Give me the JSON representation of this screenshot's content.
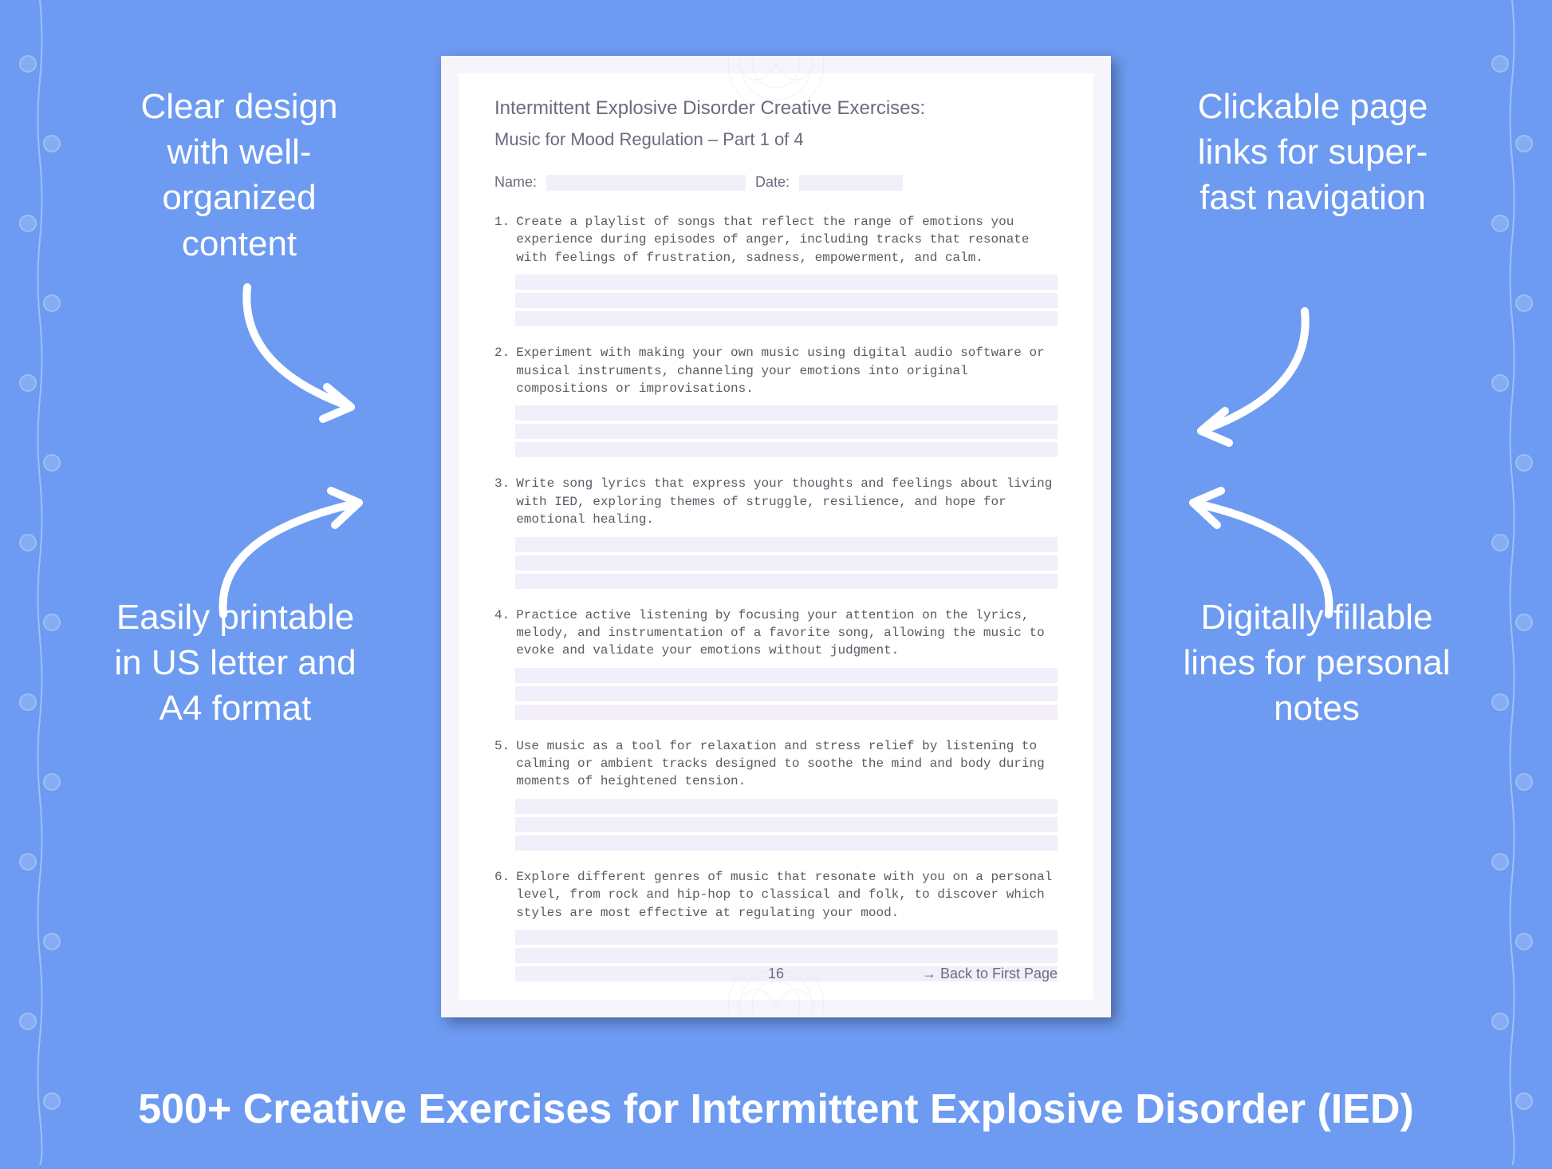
{
  "colors": {
    "background": "#6d9bf1",
    "page_outer": "#f7f4fb",
    "page_inner": "#ffffff",
    "fill_line": "#f3effa",
    "text_muted": "#6b6b80",
    "callout_text": "#ffffff",
    "arrow_color": "#ffffff",
    "floral_color": "#a9c2f6",
    "mandala_color": "#d8d3e8"
  },
  "callouts": {
    "top_left": "Clear design with well-organized content",
    "top_right": "Clickable page links for super-fast navigation",
    "bottom_left": "Easily printable in US letter and A4 format",
    "bottom_right": "Digitally fillable lines for personal notes"
  },
  "page": {
    "title": "Intermittent Explosive Disorder Creative Exercises:",
    "subtitle": "Music for Mood Regulation – Part 1 of 4",
    "name_label": "Name:",
    "date_label": "Date:",
    "page_number": "16",
    "back_link": "→ Back to First Page",
    "exercises": [
      {
        "num": "1.",
        "text": "Create a playlist of songs that reflect the range of emotions you experience during episodes of anger, including tracks that resonate with feelings of frustration, sadness, empowerment, and calm."
      },
      {
        "num": "2.",
        "text": "Experiment with making your own music using digital audio software or musical instruments, channeling your emotions into original compositions or improvisations."
      },
      {
        "num": "3.",
        "text": "Write song lyrics that express your thoughts and feelings about living with IED, exploring themes of struggle, resilience, and hope for emotional healing."
      },
      {
        "num": "4.",
        "text": "Practice active listening by focusing your attention on the lyrics, melody, and instrumentation of a favorite song, allowing the music to evoke and validate your emotions without judgment."
      },
      {
        "num": "5.",
        "text": "Use music as a tool for relaxation and stress relief by listening to calming or ambient tracks designed to soothe the mind and body during moments of heightened tension."
      },
      {
        "num": "6.",
        "text": "Explore different genres of music that resonate with you on a personal level, from rock and hip-hop to classical and folk, to discover which styles are most effective at regulating your mood."
      }
    ]
  },
  "bottom_caption": "500+ Creative Exercises for Intermittent Explosive Disorder (IED)"
}
